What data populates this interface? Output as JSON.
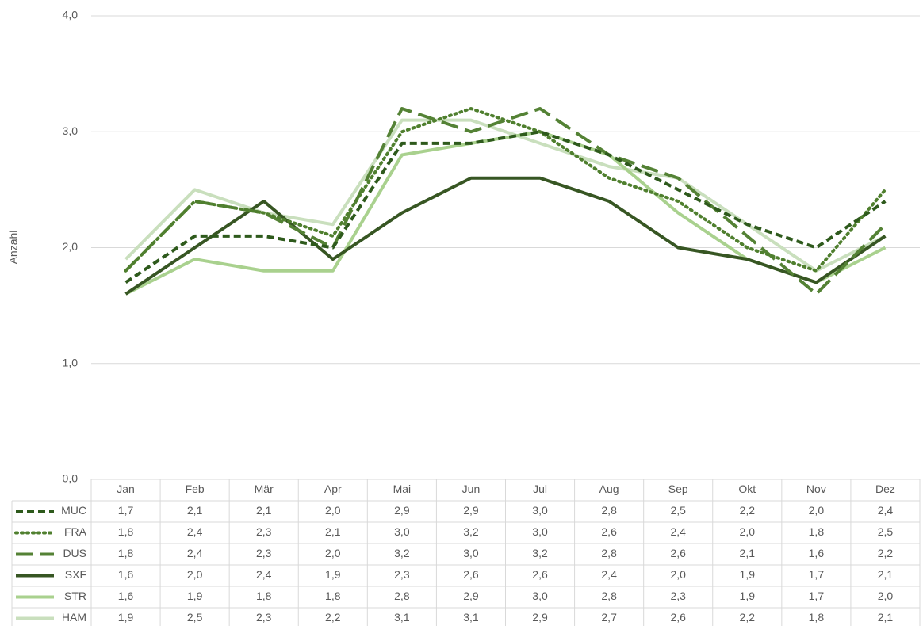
{
  "chart_data": {
    "type": "line",
    "y_label": "Anzahl",
    "categories": [
      "Jan",
      "Feb",
      "Mär",
      "Apr",
      "Mai",
      "Jun",
      "Jul",
      "Aug",
      "Sep",
      "Okt",
      "Nov",
      "Dez"
    ],
    "ylim": [
      0,
      4
    ],
    "yticks": [
      {
        "value": 0,
        "label": "0,0"
      },
      {
        "value": 1,
        "label": "1,0"
      },
      {
        "value": 2,
        "label": "2,0"
      },
      {
        "value": 3,
        "label": "3,0"
      },
      {
        "value": 4,
        "label": "4,0"
      }
    ],
    "grid": true,
    "series": [
      {
        "name": "MUC",
        "color": "#2e5a1c",
        "line_style": "dash",
        "values": [
          1.7,
          2.1,
          2.1,
          2.0,
          2.9,
          2.9,
          3.0,
          2.8,
          2.5,
          2.2,
          2.0,
          2.4
        ],
        "value_labels": [
          "1,7",
          "2,1",
          "2,1",
          "2,0",
          "2,9",
          "2,9",
          "3,0",
          "2,8",
          "2,5",
          "2,2",
          "2,0",
          "2,4"
        ]
      },
      {
        "name": "FRA",
        "color": "#4f7f2e",
        "line_style": "dot",
        "values": [
          1.8,
          2.4,
          2.3,
          2.1,
          3.0,
          3.2,
          3.0,
          2.6,
          2.4,
          2.0,
          1.8,
          2.5
        ],
        "value_labels": [
          "1,8",
          "2,4",
          "2,3",
          "2,1",
          "3,0",
          "3,2",
          "3,0",
          "2,6",
          "2,4",
          "2,0",
          "1,8",
          "2,5"
        ]
      },
      {
        "name": "DUS",
        "color": "#548235",
        "line_style": "longdash",
        "values": [
          1.8,
          2.4,
          2.3,
          2.0,
          3.2,
          3.0,
          3.2,
          2.8,
          2.6,
          2.1,
          1.6,
          2.2
        ],
        "value_labels": [
          "1,8",
          "2,4",
          "2,3",
          "2,0",
          "3,2",
          "3,0",
          "3,2",
          "2,8",
          "2,6",
          "2,1",
          "1,6",
          "2,2"
        ]
      },
      {
        "name": "SXF",
        "color": "#375623",
        "line_style": "solid",
        "values": [
          1.6,
          2.0,
          2.4,
          1.9,
          2.3,
          2.6,
          2.6,
          2.4,
          2.0,
          1.9,
          1.7,
          2.1
        ],
        "value_labels": [
          "1,6",
          "2,0",
          "2,4",
          "1,9",
          "2,3",
          "2,6",
          "2,6",
          "2,4",
          "2,0",
          "1,9",
          "1,7",
          "2,1"
        ]
      },
      {
        "name": "STR",
        "color": "#a9d18e",
        "line_style": "solid",
        "values": [
          1.6,
          1.9,
          1.8,
          1.8,
          2.8,
          2.9,
          3.0,
          2.8,
          2.3,
          1.9,
          1.7,
          2.0
        ],
        "value_labels": [
          "1,6",
          "1,9",
          "1,8",
          "1,8",
          "2,8",
          "2,9",
          "3,0",
          "2,8",
          "2,3",
          "1,9",
          "1,7",
          "2,0"
        ]
      },
      {
        "name": "HAM",
        "color": "#c9dfbd",
        "line_style": "solid",
        "values": [
          1.9,
          2.5,
          2.3,
          2.2,
          3.1,
          3.1,
          2.9,
          2.7,
          2.6,
          2.2,
          1.8,
          2.1
        ],
        "value_labels": [
          "1,9",
          "2,5",
          "2,3",
          "2,2",
          "3,1",
          "3,1",
          "2,9",
          "2,7",
          "2,6",
          "2,2",
          "1,8",
          "2,1"
        ]
      }
    ]
  }
}
